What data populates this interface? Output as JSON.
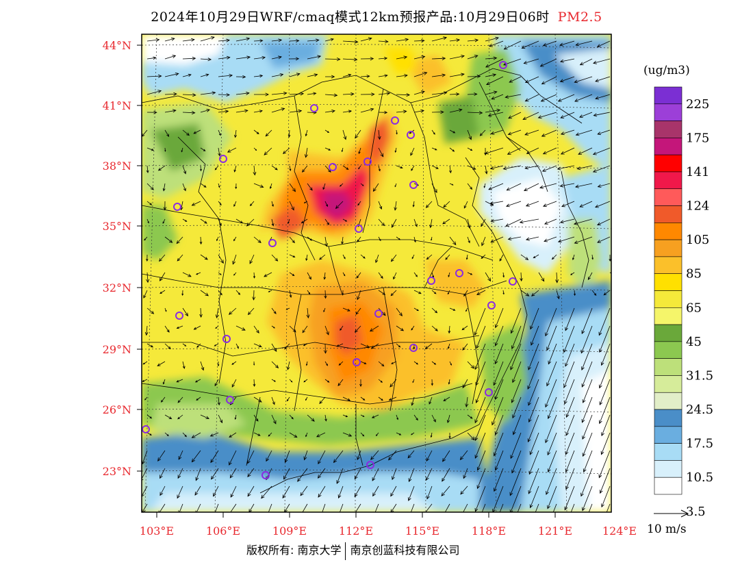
{
  "title": {
    "main": "2024年10月29日WRF/cmaq模式12km预报产品:10月29日06时",
    "product": "PM2.5"
  },
  "map": {
    "lat_labels": [
      "44°N",
      "41°N",
      "38°N",
      "35°N",
      "32°N",
      "29°N",
      "26°N",
      "23°N"
    ],
    "lon_labels": [
      "103°E",
      "106°E",
      "109°E",
      "112°E",
      "115°E",
      "118°E",
      "121°E",
      "124°E"
    ],
    "label_color": "#e8282e",
    "station_marker_color": "#8a2be2"
  },
  "colorbar": {
    "unit": "(ug/m3)",
    "labels": [
      "225",
      "175",
      "141",
      "124",
      "105",
      "85",
      "65",
      "45",
      "31.5",
      "24.5",
      "17.5",
      "10.5",
      "3.5"
    ],
    "colors": [
      "#7b2fd3",
      "#9c3fd8",
      "#a8346a",
      "#c4167a",
      "#ff0000",
      "#f0184a",
      "#ff5a5a",
      "#f05a2a",
      "#ff8800",
      "#f7a020",
      "#fbc02a",
      "#ffe000",
      "#f5e93a",
      "#f5f56a",
      "#6aa83a",
      "#8cc850",
      "#bde07a",
      "#d6ec9a",
      "#e2eec8",
      "#4a8ec8",
      "#6aaee0",
      "#a8dcf5",
      "#d8f0fb",
      "#ffffff"
    ]
  },
  "wind_reference": {
    "label": "10 m/s"
  },
  "footer": {
    "copyright": "版权所有: 南京大学",
    "company": "南京创蓝科技有限公司"
  }
}
